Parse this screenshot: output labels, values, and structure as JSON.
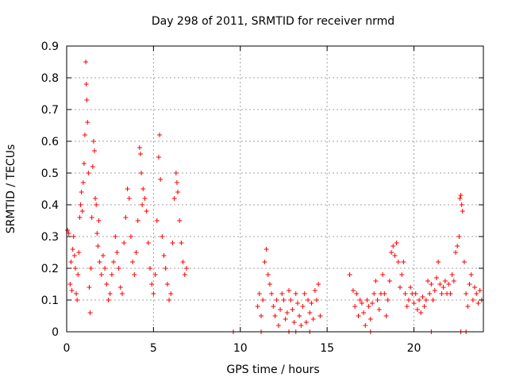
{
  "chart_data": {
    "type": "scatter",
    "title": "Day 298 of 2011, SRMTID for receiver nrmd",
    "xlabel": "GPS time / hours",
    "ylabel": "SRMTID / TECUs",
    "xlim": [
      0,
      24
    ],
    "ylim": [
      0,
      0.9
    ],
    "xticks": [
      0,
      5,
      10,
      15,
      20
    ],
    "yticks": [
      0,
      0.1,
      0.2,
      0.3,
      0.4,
      0.5,
      0.6,
      0.7,
      0.8,
      0.9
    ],
    "grid": true,
    "marker": "+",
    "color": "#ff0000",
    "series": [
      {
        "points": [
          [
            0.05,
            0.32
          ],
          [
            0.12,
            0.31
          ],
          [
            0.2,
            0.15
          ],
          [
            0.25,
            0.22
          ],
          [
            0.3,
            0.13
          ],
          [
            0.35,
            0.26
          ],
          [
            0.4,
            0.3
          ],
          [
            0.45,
            0.24
          ],
          [
            0.5,
            0.2
          ],
          [
            0.55,
            0.12
          ],
          [
            0.6,
            0.1
          ],
          [
            0.65,
            0.18
          ],
          [
            0.7,
            0.25
          ],
          [
            0.75,
            0.36
          ],
          [
            0.8,
            0.4
          ],
          [
            0.85,
            0.44
          ],
          [
            0.9,
            0.38
          ],
          [
            0.95,
            0.47
          ],
          [
            1.0,
            0.53
          ],
          [
            1.05,
            0.62
          ],
          [
            1.1,
            0.85
          ],
          [
            1.13,
            0.78
          ],
          [
            1.16,
            0.73
          ],
          [
            1.2,
            0.66
          ],
          [
            1.25,
            0.5
          ],
          [
            1.3,
            0.14
          ],
          [
            1.35,
            0.06
          ],
          [
            1.4,
            0.2
          ],
          [
            1.45,
            0.36
          ],
          [
            1.5,
            0.52
          ],
          [
            1.55,
            0.6
          ],
          [
            1.6,
            0.57
          ],
          [
            1.65,
            0.42
          ],
          [
            1.7,
            0.4
          ],
          [
            1.75,
            0.31
          ],
          [
            1.8,
            0.27
          ],
          [
            1.85,
            0.35
          ],
          [
            1.9,
            0.22
          ],
          [
            2.0,
            0.18
          ],
          [
            2.1,
            0.24
          ],
          [
            2.2,
            0.2
          ],
          [
            2.3,
            0.15
          ],
          [
            2.4,
            0.1
          ],
          [
            2.5,
            0.12
          ],
          [
            2.6,
            0.18
          ],
          [
            2.7,
            0.22
          ],
          [
            2.8,
            0.3
          ],
          [
            2.9,
            0.25
          ],
          [
            3.0,
            0.2
          ],
          [
            3.1,
            0.14
          ],
          [
            3.2,
            0.12
          ],
          [
            3.3,
            0.28
          ],
          [
            3.4,
            0.36
          ],
          [
            3.5,
            0.45
          ],
          [
            3.6,
            0.42
          ],
          [
            3.7,
            0.3
          ],
          [
            3.8,
            0.22
          ],
          [
            3.9,
            0.18
          ],
          [
            4.0,
            0.25
          ],
          [
            4.1,
            0.35
          ],
          [
            4.2,
            0.58
          ],
          [
            4.25,
            0.56
          ],
          [
            4.3,
            0.5
          ],
          [
            4.35,
            0.4
          ],
          [
            4.4,
            0.45
          ],
          [
            4.5,
            0.42
          ],
          [
            4.6,
            0.38
          ],
          [
            4.7,
            0.28
          ],
          [
            4.8,
            0.2
          ],
          [
            4.9,
            0.15
          ],
          [
            5.0,
            0.12
          ],
          [
            5.1,
            0.18
          ],
          [
            5.2,
            0.35
          ],
          [
            5.3,
            0.55
          ],
          [
            5.35,
            0.62
          ],
          [
            5.4,
            0.48
          ],
          [
            5.5,
            0.3
          ],
          [
            5.6,
            0.24
          ],
          [
            5.7,
            0.2
          ],
          [
            5.8,
            0.15
          ],
          [
            5.9,
            0.1
          ],
          [
            6.0,
            0.12
          ],
          [
            6.1,
            0.28
          ],
          [
            6.2,
            0.42
          ],
          [
            6.3,
            0.5
          ],
          [
            6.35,
            0.47
          ],
          [
            6.4,
            0.44
          ],
          [
            6.5,
            0.35
          ],
          [
            6.6,
            0.28
          ],
          [
            6.7,
            0.22
          ],
          [
            6.8,
            0.18
          ],
          [
            6.9,
            0.2
          ],
          [
            9.6,
            0.0
          ],
          [
            11.0,
            0.08
          ],
          [
            11.1,
            0.12
          ],
          [
            11.2,
            0.05
          ],
          [
            11.3,
            0.1
          ],
          [
            11.4,
            0.22
          ],
          [
            11.5,
            0.26
          ],
          [
            11.6,
            0.18
          ],
          [
            11.7,
            0.15
          ],
          [
            11.8,
            0.12
          ],
          [
            11.9,
            0.08
          ],
          [
            12.0,
            0.05
          ],
          [
            12.1,
            0.1
          ],
          [
            12.2,
            0.02
          ],
          [
            12.3,
            0.07
          ],
          [
            12.4,
            0.12
          ],
          [
            12.5,
            0.1
          ],
          [
            12.6,
            0.04
          ],
          [
            12.7,
            0.06
          ],
          [
            12.8,
            0.13
          ],
          [
            12.9,
            0.1
          ],
          [
            13.0,
            0.07
          ],
          [
            13.1,
            0.03
          ],
          [
            13.2,
            0.12
          ],
          [
            13.3,
            0.09
          ],
          [
            13.4,
            0.05
          ],
          [
            13.5,
            0.02
          ],
          [
            13.6,
            0.08
          ],
          [
            13.7,
            0.12
          ],
          [
            13.8,
            0.03
          ],
          [
            13.9,
            0.1
          ],
          [
            14.0,
            0.06
          ],
          [
            14.1,
            0.09
          ],
          [
            14.2,
            0.04
          ],
          [
            14.3,
            0.13
          ],
          [
            14.4,
            0.1
          ],
          [
            14.5,
            0.15
          ],
          [
            14.6,
            0.05
          ],
          [
            16.3,
            0.18
          ],
          [
            16.5,
            0.13
          ],
          [
            16.6,
            0.08
          ],
          [
            16.7,
            0.12
          ],
          [
            16.8,
            0.05
          ],
          [
            16.9,
            0.1
          ],
          [
            17.0,
            0.09
          ],
          [
            17.1,
            0.06
          ],
          [
            17.2,
            0.02
          ],
          [
            17.3,
            0.1
          ],
          [
            17.4,
            0.08
          ],
          [
            17.5,
            0.04
          ],
          [
            17.6,
            0.09
          ],
          [
            17.7,
            0.12
          ],
          [
            17.8,
            0.16
          ],
          [
            17.9,
            0.1
          ],
          [
            18.0,
            0.07
          ],
          [
            18.1,
            0.12
          ],
          [
            18.2,
            0.18
          ],
          [
            18.3,
            0.12
          ],
          [
            18.4,
            0.05
          ],
          [
            18.5,
            0.1
          ],
          [
            18.6,
            0.16
          ],
          [
            18.7,
            0.25
          ],
          [
            18.8,
            0.27
          ],
          [
            18.9,
            0.24
          ],
          [
            19.0,
            0.28
          ],
          [
            19.1,
            0.22
          ],
          [
            19.2,
            0.14
          ],
          [
            19.3,
            0.18
          ],
          [
            19.4,
            0.22
          ],
          [
            19.5,
            0.12
          ],
          [
            19.6,
            0.08
          ],
          [
            19.7,
            0.1
          ],
          [
            19.8,
            0.14
          ],
          [
            19.9,
            0.12
          ],
          [
            20.0,
            0.09
          ],
          [
            20.1,
            0.12
          ],
          [
            20.2,
            0.07
          ],
          [
            20.3,
            0.1
          ],
          [
            20.4,
            0.06
          ],
          [
            20.5,
            0.11
          ],
          [
            20.6,
            0.08
          ],
          [
            20.7,
            0.1
          ],
          [
            20.8,
            0.16
          ],
          [
            20.9,
            0.12
          ],
          [
            21.0,
            0.15
          ],
          [
            21.1,
            0.1
          ],
          [
            21.2,
            0.13
          ],
          [
            21.3,
            0.17
          ],
          [
            21.4,
            0.22
          ],
          [
            21.5,
            0.15
          ],
          [
            21.6,
            0.12
          ],
          [
            21.7,
            0.14
          ],
          [
            21.8,
            0.16
          ],
          [
            21.9,
            0.12
          ],
          [
            22.0,
            0.15
          ],
          [
            22.1,
            0.12
          ],
          [
            22.2,
            0.18
          ],
          [
            22.3,
            0.16
          ],
          [
            22.4,
            0.25
          ],
          [
            22.5,
            0.27
          ],
          [
            22.6,
            0.3
          ],
          [
            22.65,
            0.42
          ],
          [
            22.7,
            0.43
          ],
          [
            22.75,
            0.4
          ],
          [
            22.8,
            0.38
          ],
          [
            22.9,
            0.22
          ],
          [
            23.0,
            0.12
          ],
          [
            23.1,
            0.08
          ],
          [
            23.2,
            0.15
          ],
          [
            23.3,
            0.18
          ],
          [
            23.4,
            0.1
          ],
          [
            23.5,
            0.14
          ],
          [
            23.6,
            0.12
          ],
          [
            23.7,
            0.09
          ],
          [
            23.8,
            0.13
          ],
          [
            23.9,
            0.1
          ],
          [
            11.2,
            0.0
          ],
          [
            12.8,
            0.0
          ],
          [
            13.2,
            0.0
          ],
          [
            14.0,
            0.0
          ],
          [
            17.5,
            0.0
          ],
          [
            21.0,
            0.0
          ],
          [
            22.7,
            0.0
          ],
          [
            23.0,
            0.0
          ]
        ]
      }
    ]
  }
}
